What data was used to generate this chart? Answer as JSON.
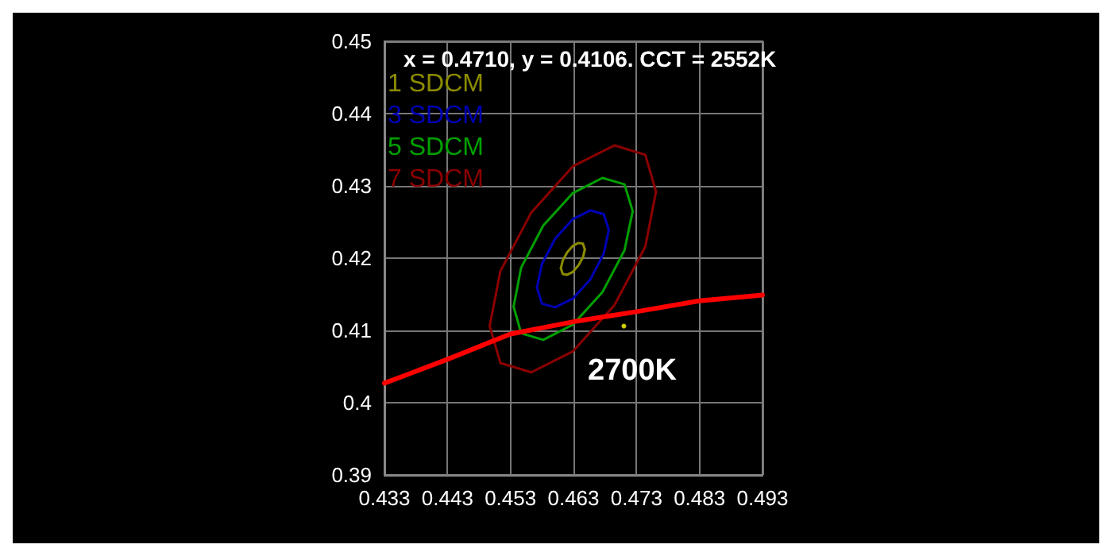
{
  "chart_data": {
    "type": "line",
    "xlim": [
      0.433,
      0.493
    ],
    "xticks": [
      0.433,
      0.443,
      0.453,
      0.463,
      0.473,
      0.483,
      0.493
    ],
    "ylim": [
      0.39,
      0.45
    ],
    "yticks": [
      0.39,
      0.4,
      0.41,
      0.42,
      0.43,
      0.44,
      0.45
    ],
    "grid": true,
    "marker": "none",
    "line_style": "solid",
    "annotations": [
      "x = 0.4710, y = 0.4106. CCT = 2552K",
      "2700K"
    ],
    "series": [
      {
        "name": "1 SDCM",
        "color": "#8c8c00",
        "x": [
          0.461,
          0.4613,
          0.462,
          0.4629,
          0.4638,
          0.4645,
          0.4648
        ],
        "values": [
          0.4186,
          0.4197,
          0.4208,
          0.4217,
          0.4221,
          0.422,
          0.4212
        ]
      },
      {
        "color": "#8c8c00",
        "x": [
          0.461,
          0.4613,
          0.462,
          0.4629,
          0.4638,
          0.4645,
          0.4648
        ],
        "values": [
          0.4186,
          0.4178,
          0.4177,
          0.4181,
          0.419,
          0.4201,
          0.4212
        ]
      },
      {
        "name": "3 SDCM",
        "color": "#0000b4",
        "x": [
          0.4572,
          0.458,
          0.4601,
          0.4629,
          0.4657,
          0.4678,
          0.4686
        ],
        "values": [
          0.4159,
          0.4192,
          0.4227,
          0.4254,
          0.4266,
          0.4261,
          0.4239
        ]
      },
      {
        "color": "#0000b4",
        "x": [
          0.4572,
          0.458,
          0.4601,
          0.4629,
          0.4657,
          0.4678,
          0.4686
        ],
        "values": [
          0.4159,
          0.4137,
          0.4132,
          0.4144,
          0.4171,
          0.4206,
          0.4239
        ]
      },
      {
        "name": "5 SDCM",
        "color": "#00a000",
        "x": [
          0.4535,
          0.4547,
          0.4582,
          0.4629,
          0.4676,
          0.4711,
          0.4724
        ],
        "values": [
          0.4133,
          0.4187,
          0.4245,
          0.429,
          0.4311,
          0.4302,
          0.4265
        ]
      },
      {
        "color": "#00a000",
        "x": [
          0.4535,
          0.4547,
          0.4582,
          0.4629,
          0.4676,
          0.4711,
          0.4724
        ],
        "values": [
          0.4133,
          0.4096,
          0.4087,
          0.4108,
          0.4153,
          0.4211,
          0.4265
        ]
      },
      {
        "name": "7 SDCM",
        "color": "#8b0000",
        "x": [
          0.4497,
          0.4514,
          0.4563,
          0.4629,
          0.4695,
          0.4744,
          0.4761
        ],
        "values": [
          0.4106,
          0.4182,
          0.4263,
          0.4327,
          0.4356,
          0.4343,
          0.4292
        ]
      },
      {
        "color": "#8b0000",
        "x": [
          0.4497,
          0.4514,
          0.4563,
          0.4629,
          0.4695,
          0.4744,
          0.4761
        ],
        "values": [
          0.4106,
          0.4055,
          0.4042,
          0.4071,
          0.4135,
          0.4216,
          0.4292
        ]
      },
      {
        "color": "#ff0000",
        "x": [
          0.433,
          0.443,
          0.453,
          0.463,
          0.473,
          0.483,
          0.493
        ],
        "values": [
          0.4027,
          0.406,
          0.4095,
          0.4112,
          0.4126,
          0.4141,
          0.4149
        ]
      },
      {
        "type": "scatter",
        "color": "#ffff00",
        "x": [
          0.471
        ],
        "values": [
          0.4106
        ]
      }
    ]
  }
}
